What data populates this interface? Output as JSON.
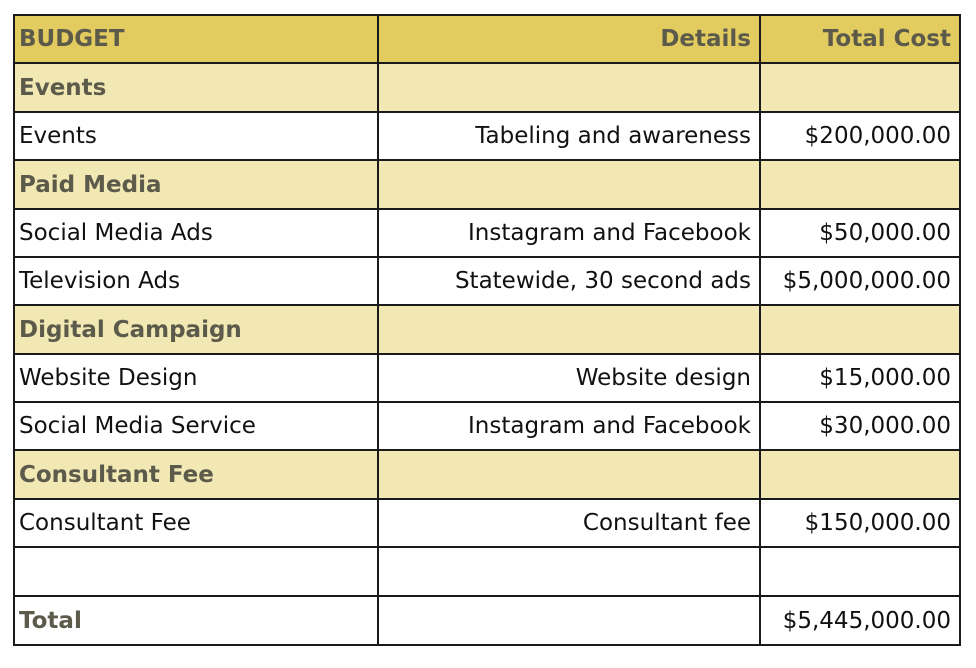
{
  "header": {
    "budget": "BUDGET",
    "details": "Details",
    "total_cost": "Total Cost"
  },
  "rows": [
    {
      "type": "section",
      "label": "Events"
    },
    {
      "type": "item",
      "label": "Events",
      "details": "Tabeling and awareness",
      "cost": "$200,000.00"
    },
    {
      "type": "section",
      "label": "Paid Media"
    },
    {
      "type": "item",
      "label": "Social Media Ads",
      "details": "Instagram and Facebook",
      "cost": "$50,000.00"
    },
    {
      "type": "item",
      "label": "Television Ads",
      "details": "Statewide, 30 second ads",
      "cost": "$5,000,000.00"
    },
    {
      "type": "section",
      "label": "Digital Campaign"
    },
    {
      "type": "item",
      "label": "Website Design",
      "details": "Website design",
      "cost": "$15,000.00"
    },
    {
      "type": "item",
      "label": "Social Media Service",
      "details": "Instagram and Facebook",
      "cost": "$30,000.00"
    },
    {
      "type": "section",
      "label": "Consultant Fee"
    },
    {
      "type": "item",
      "label": "Consultant Fee",
      "details": "Consultant fee",
      "cost": "$150,000.00"
    },
    {
      "type": "blank"
    }
  ],
  "total": {
    "label": "Total",
    "cost": "$5,445,000.00"
  },
  "colors": {
    "header_bg": "#e3cc5f",
    "section_bg": "#f1e8b3",
    "header_text": "#5c5a4a"
  }
}
